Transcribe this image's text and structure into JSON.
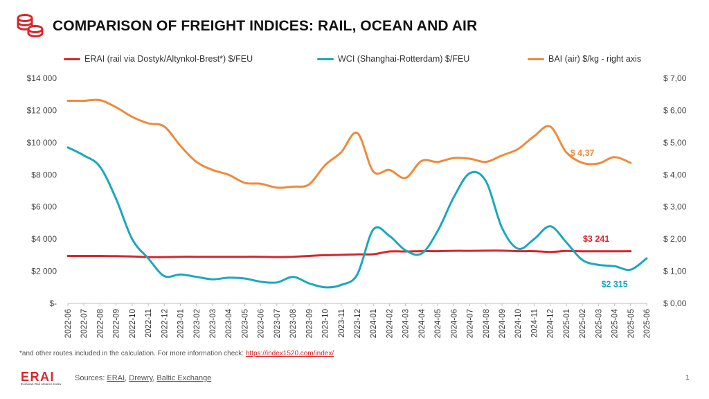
{
  "title": "COMPARISON OF FREIGHT INDICES: RAIL, OCEAN AND AIR",
  "colors": {
    "erai": "#d8262b",
    "wci": "#1aa7bf",
    "bai": "#ef8a3a",
    "accent": "#d8262b"
  },
  "chart_data": {
    "type": "line",
    "title": "COMPARISON OF FREIGHT INDICES: RAIL, OCEAN AND AIR",
    "x": [
      "2022-06",
      "2022-07",
      "2022-08",
      "2022-09",
      "2022-10",
      "2022-11",
      "2022-12",
      "2023-01",
      "2023-02",
      "2023-03",
      "2023-04",
      "2023-05",
      "2023-06",
      "2023-07",
      "2023-08",
      "2023-09",
      "2023-10",
      "2023-11",
      "2023-12",
      "2024-01",
      "2024-02",
      "2024-03",
      "2024-04",
      "2024-05",
      "2024-06",
      "2024-07",
      "2024-08",
      "2024-09",
      "2024-10",
      "2024-11",
      "2024-12",
      "2025-01",
      "2025-02",
      "2025-03",
      "2025-04",
      "2025-05",
      "2025-06"
    ],
    "left_axis": {
      "ylim": [
        0,
        14000
      ],
      "ticks": [
        "$-",
        "$2 000",
        "$4 000",
        "$6 000",
        "$8 000",
        "$10 000",
        "$12 000",
        "$14 000"
      ]
    },
    "right_axis": {
      "ylim": [
        0,
        7
      ],
      "ticks": [
        "$ 0,00",
        "$ 1,00",
        "$ 2,00",
        "$ 3,00",
        "$ 4,00",
        "$ 5,00",
        "$ 6,00",
        "$ 7,00"
      ]
    },
    "series": [
      {
        "name": "ERAI (rail via Dostyk/Altynkol-Brest*)  $/FEU",
        "axis": "left",
        "color": "#d8262b",
        "values": [
          2950,
          2950,
          2950,
          2940,
          2920,
          2880,
          2880,
          2900,
          2900,
          2900,
          2900,
          2900,
          2900,
          2880,
          2900,
          2950,
          3000,
          3020,
          3050,
          3060,
          3230,
          3230,
          3250,
          3250,
          3270,
          3270,
          3280,
          3280,
          3250,
          3250,
          3200,
          3260,
          3241,
          3240,
          3240,
          3250,
          null
        ]
      },
      {
        "name": "WCI (Shanghai-Rotterdam) $/FEU",
        "axis": "left",
        "color": "#1aa7bf",
        "values": [
          9700,
          9200,
          8500,
          6500,
          4000,
          2800,
          1700,
          1800,
          1650,
          1500,
          1600,
          1550,
          1350,
          1300,
          1650,
          1250,
          1000,
          1150,
          1800,
          4600,
          4200,
          3300,
          3100,
          4500,
          6600,
          8100,
          7600,
          4700,
          3400,
          4000,
          4800,
          3800,
          2700,
          2400,
          2315,
          2100,
          2800
        ]
      },
      {
        "name": "BAI (air) $/kg - right axis",
        "axis": "right",
        "color": "#ef8a3a",
        "values": [
          6.3,
          6.3,
          6.32,
          6.1,
          5.8,
          5.6,
          5.5,
          4.9,
          4.4,
          4.15,
          4.0,
          3.75,
          3.72,
          3.6,
          3.63,
          3.7,
          4.3,
          4.7,
          5.3,
          4.1,
          4.15,
          3.9,
          4.43,
          4.4,
          4.52,
          4.5,
          4.4,
          4.6,
          4.8,
          5.2,
          5.5,
          4.7,
          4.37,
          4.35,
          4.55,
          4.37,
          null
        ]
      }
    ],
    "annotations": [
      {
        "text": "$ 4,37",
        "series": "BAI",
        "at": "2025-02"
      },
      {
        "text": "$3 241",
        "series": "ERAI",
        "at": "2025-02"
      },
      {
        "text": "$2 315",
        "series": "WCI",
        "at": "2025-04"
      }
    ]
  },
  "footnote": {
    "text": "*and other routes included in the calculation. For more information check: ",
    "link": "https://index1520.com/index/"
  },
  "sources": {
    "label": "Sources: ",
    "items": [
      "ERAI",
      "Drewry",
      "Baltic Exchange"
    ]
  },
  "logo": {
    "name": "ERAI",
    "subtitle": "Eurasian Rail Alliance Index"
  },
  "page_number": "1"
}
